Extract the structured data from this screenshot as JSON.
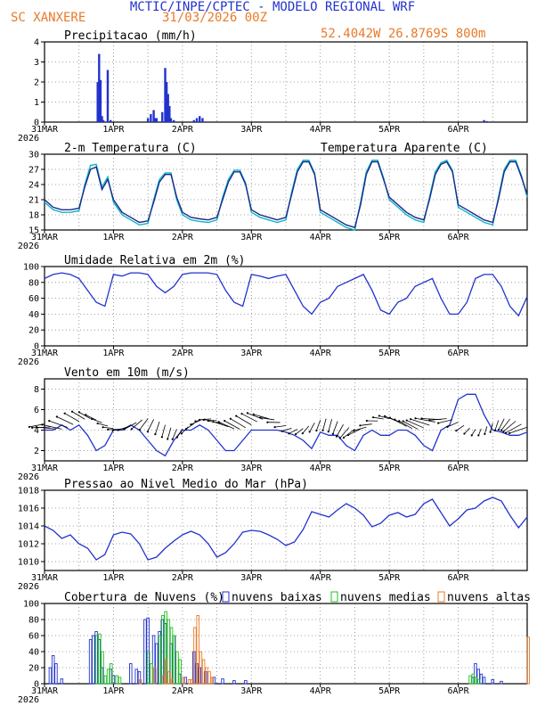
{
  "header": {
    "title": "MCTIC/INPE/CPTEC - MODELO REGIONAL WRF",
    "station": "SC XANXERE",
    "date": "31/03/2026 00Z",
    "coords": "52.4042W 26.8769S 800m"
  },
  "colors": {
    "blue": "#2233cc",
    "cyan": "#10b4c8",
    "green": "#22c022",
    "orange": "#e87b2a",
    "grid": "#888888"
  },
  "x_axis": {
    "labels": [
      "31MAR",
      "1APR",
      "2APR",
      "3APR",
      "4APR",
      "5APR",
      "6APR"
    ],
    "year": "2026",
    "range_hours": [
      0,
      168
    ]
  },
  "chart_data": [
    {
      "id": "precip",
      "type": "bar",
      "title": "Precipitacao (mm/h)",
      "ylim": [
        0,
        4
      ],
      "yticks": [
        0,
        1,
        2,
        3,
        4
      ],
      "x_hours": [
        18.5,
        19,
        19.5,
        20,
        20.5,
        22,
        23,
        36,
        37,
        38,
        38.5,
        39,
        41,
        42,
        42.5,
        43,
        43.5,
        44,
        45,
        52,
        53,
        54,
        55,
        153,
        154
      ],
      "values": [
        2.0,
        3.4,
        2.1,
        0.3,
        0.1,
        2.6,
        0.1,
        0.2,
        0.4,
        0.6,
        0.2,
        0.2,
        0.5,
        2.7,
        2.0,
        1.4,
        0.8,
        0.2,
        0.1,
        0.1,
        0.2,
        0.3,
        0.2,
        0.1,
        0.05
      ]
    },
    {
      "id": "temp",
      "type": "line",
      "title": "2-m Temperatura (C)",
      "legend": "Temperatura Aparente (C)",
      "ylim": [
        15,
        30
      ],
      "yticks": [
        15,
        18,
        21,
        24,
        27,
        30
      ],
      "x_hours": [
        0,
        3,
        6,
        9,
        12,
        14,
        16,
        18,
        20,
        22,
        24,
        27,
        30,
        33,
        36,
        38,
        40,
        42,
        44,
        46,
        48,
        51,
        54,
        57,
        60,
        62,
        64,
        66,
        68,
        70,
        72,
        75,
        78,
        81,
        84,
        86,
        88,
        90,
        92,
        94,
        96,
        99,
        102,
        105,
        108,
        110,
        112,
        114,
        116,
        118,
        120,
        123,
        126,
        129,
        132,
        134,
        136,
        138,
        140,
        142,
        144,
        147,
        150,
        153,
        156,
        158,
        160,
        162,
        164,
        166,
        168
      ],
      "series": [
        {
          "name": "Temperatura 2m",
          "values": [
            21,
            19.5,
            19,
            19,
            19.3,
            23.5,
            27,
            27.5,
            23,
            25,
            21,
            18.5,
            17.5,
            16.5,
            16.8,
            20.5,
            24.5,
            26,
            26,
            21.5,
            18.5,
            17.5,
            17.2,
            17,
            17.5,
            21,
            24.5,
            26.5,
            26.5,
            24,
            19,
            18,
            17.5,
            17,
            17.5,
            22,
            26.5,
            28.5,
            28.5,
            26,
            19,
            18,
            17,
            16,
            15.5,
            20,
            26,
            28.5,
            28.5,
            25,
            21.5,
            20,
            18.5,
            17.5,
            17,
            21,
            26,
            28,
            28.5,
            26.5,
            20,
            19,
            18,
            17,
            16.5,
            21,
            26.5,
            28.5,
            28.5,
            25.5,
            22
          ]
        },
        {
          "name": "Temperatura Aparente",
          "values": [
            20.5,
            19,
            18.5,
            18.5,
            18.8,
            24,
            27.8,
            28,
            23.5,
            25.5,
            20.5,
            18,
            17,
            16,
            16.3,
            21,
            25,
            26.3,
            26.3,
            21,
            18,
            17,
            16.7,
            16.5,
            17,
            21.5,
            25,
            26.8,
            26.8,
            24.3,
            18.5,
            17.5,
            17,
            16.5,
            17,
            22.5,
            27,
            28.8,
            28.8,
            26.3,
            18.5,
            17.5,
            16.5,
            15.5,
            15,
            20.5,
            26.5,
            28.8,
            28.8,
            25.3,
            21,
            19.5,
            18,
            17,
            16.5,
            21.5,
            26.5,
            28.3,
            28.8,
            26.8,
            19.5,
            18.5,
            17.5,
            16.5,
            16,
            21.5,
            27,
            28.8,
            28.8,
            25.8,
            21.5
          ]
        }
      ]
    },
    {
      "id": "rh",
      "type": "line",
      "title": "Umidade Relativa em 2m (%)",
      "ylim": [
        0,
        100
      ],
      "yticks": [
        0,
        20,
        40,
        60,
        80,
        100
      ],
      "x_hours": [
        0,
        3,
        6,
        9,
        12,
        15,
        18,
        21,
        24,
        27,
        30,
        33,
        36,
        39,
        42,
        45,
        48,
        51,
        54,
        57,
        60,
        63,
        66,
        69,
        72,
        75,
        78,
        81,
        84,
        87,
        90,
        93,
        96,
        99,
        102,
        105,
        108,
        111,
        114,
        117,
        120,
        123,
        126,
        129,
        132,
        135,
        138,
        141,
        144,
        147,
        150,
        153,
        156,
        159,
        162,
        165,
        168
      ],
      "values": [
        85,
        90,
        92,
        90,
        85,
        70,
        55,
        50,
        90,
        88,
        92,
        92,
        90,
        75,
        67,
        75,
        90,
        92,
        92,
        92,
        90,
        70,
        55,
        50,
        90,
        88,
        85,
        88,
        90,
        70,
        50,
        40,
        55,
        60,
        75,
        80,
        85,
        90,
        70,
        45,
        40,
        55,
        60,
        75,
        80,
        85,
        60,
        40,
        40,
        55,
        85,
        90,
        90,
        75,
        50,
        38,
        62
      ]
    },
    {
      "id": "wind",
      "type": "line",
      "title": "Vento em 10m (m/s)",
      "ylim": [
        1,
        9
      ],
      "yticks": [
        2,
        4,
        6,
        8
      ],
      "x_hours": [
        0,
        3,
        6,
        9,
        12,
        15,
        18,
        21,
        24,
        27,
        30,
        33,
        36,
        39,
        42,
        45,
        48,
        51,
        54,
        57,
        60,
        63,
        66,
        69,
        72,
        75,
        78,
        81,
        84,
        87,
        90,
        93,
        96,
        99,
        102,
        105,
        108,
        111,
        114,
        117,
        120,
        123,
        126,
        129,
        132,
        135,
        138,
        141,
        144,
        147,
        150,
        153,
        156,
        159,
        162,
        165,
        168
      ],
      "values": [
        4,
        4,
        4.5,
        4,
        4.5,
        3.5,
        2,
        2.5,
        4,
        4,
        4.5,
        4,
        3,
        2,
        1.5,
        3,
        4,
        4,
        4.5,
        4,
        3,
        2,
        2,
        3,
        4,
        4,
        4,
        4,
        3.8,
        3.5,
        3,
        2.2,
        3.8,
        3.5,
        3.5,
        2.5,
        2,
        3.5,
        4,
        3.5,
        3.5,
        4,
        4,
        3.5,
        2.5,
        2,
        4,
        4.5,
        7,
        7.5,
        7.5,
        5.5,
        4,
        3.8,
        3.5,
        3.5,
        3.8
      ]
    },
    {
      "id": "pressure",
      "type": "line",
      "title": "Pressao ao Nivel Medio do Mar (hPa)",
      "ylim": [
        1009,
        1018
      ],
      "yticks": [
        1010,
        1012,
        1014,
        1016,
        1018
      ],
      "x_hours": [
        0,
        3,
        6,
        9,
        12,
        15,
        18,
        21,
        24,
        27,
        30,
        33,
        36,
        39,
        42,
        45,
        48,
        51,
        54,
        57,
        60,
        63,
        66,
        69,
        72,
        75,
        78,
        81,
        84,
        87,
        90,
        93,
        96,
        99,
        102,
        105,
        108,
        111,
        114,
        117,
        120,
        123,
        126,
        129,
        132,
        135,
        138,
        141,
        144,
        147,
        150,
        153,
        156,
        159,
        162,
        165,
        168
      ],
      "values": [
        1014,
        1013.5,
        1012.6,
        1013,
        1012,
        1011.5,
        1010.2,
        1010.8,
        1013,
        1013.3,
        1013.1,
        1012,
        1010.2,
        1010.5,
        1011.5,
        1012.3,
        1013,
        1013.4,
        1013,
        1012,
        1010.5,
        1011,
        1012,
        1013.3,
        1013.5,
        1013.4,
        1013,
        1012.5,
        1011.8,
        1012.2,
        1013.6,
        1015.6,
        1015.3,
        1015,
        1015.8,
        1016.5,
        1016,
        1015.2,
        1013.9,
        1014.3,
        1015.2,
        1015.5,
        1015,
        1015.3,
        1016.5,
        1017,
        1015.5,
        1014,
        1014.8,
        1015.8,
        1016,
        1016.8,
        1017.2,
        1016.8,
        1015.2,
        1013.8,
        1015
      ]
    },
    {
      "id": "clouds",
      "type": "bar",
      "title": "Cobertura de Nuvens (%)",
      "ylim": [
        0,
        100
      ],
      "yticks": [
        0,
        20,
        40,
        60,
        80,
        100
      ],
      "legend": [
        "nuvens baixas",
        "nuvens medias",
        "nuvens altas"
      ],
      "series": [
        {
          "name": "nuvens baixas",
          "x_hours": [
            2,
            3,
            4,
            6,
            16,
            17,
            18,
            19,
            20,
            23,
            24,
            30,
            32,
            33,
            35,
            36,
            38,
            39,
            40,
            41,
            42,
            44,
            45,
            47,
            49,
            52,
            53,
            54,
            56,
            59,
            62,
            66,
            70,
            149,
            150,
            151,
            152,
            153,
            156,
            159
          ],
          "values": [
            20,
            35,
            25,
            6,
            55,
            60,
            65,
            55,
            20,
            18,
            10,
            25,
            18,
            15,
            80,
            82,
            60,
            50,
            65,
            80,
            75,
            50,
            60,
            12,
            8,
            40,
            25,
            20,
            15,
            8,
            6,
            4,
            4,
            8,
            25,
            18,
            12,
            8,
            5,
            3
          ]
        },
        {
          "name": "nuvens medias",
          "x_hours": [
            18,
            19,
            20,
            21,
            22,
            23,
            25,
            26,
            36,
            37,
            40,
            41,
            42,
            43,
            44,
            45,
            46,
            47,
            148,
            149,
            150,
            151
          ],
          "values": [
            60,
            62,
            40,
            10,
            18,
            25,
            10,
            8,
            40,
            25,
            60,
            85,
            90,
            80,
            70,
            60,
            40,
            30,
            10,
            12,
            8,
            5
          ]
        },
        {
          "name": "nuvens altas",
          "x_hours": [
            33,
            38,
            41,
            42,
            43,
            44,
            48,
            50,
            51,
            52,
            53,
            54,
            55,
            56,
            57,
            58,
            168
          ],
          "values": [
            5,
            20,
            10,
            30,
            15,
            5,
            8,
            5,
            5,
            70,
            85,
            40,
            30,
            20,
            15,
            8,
            58
          ]
        }
      ]
    }
  ]
}
